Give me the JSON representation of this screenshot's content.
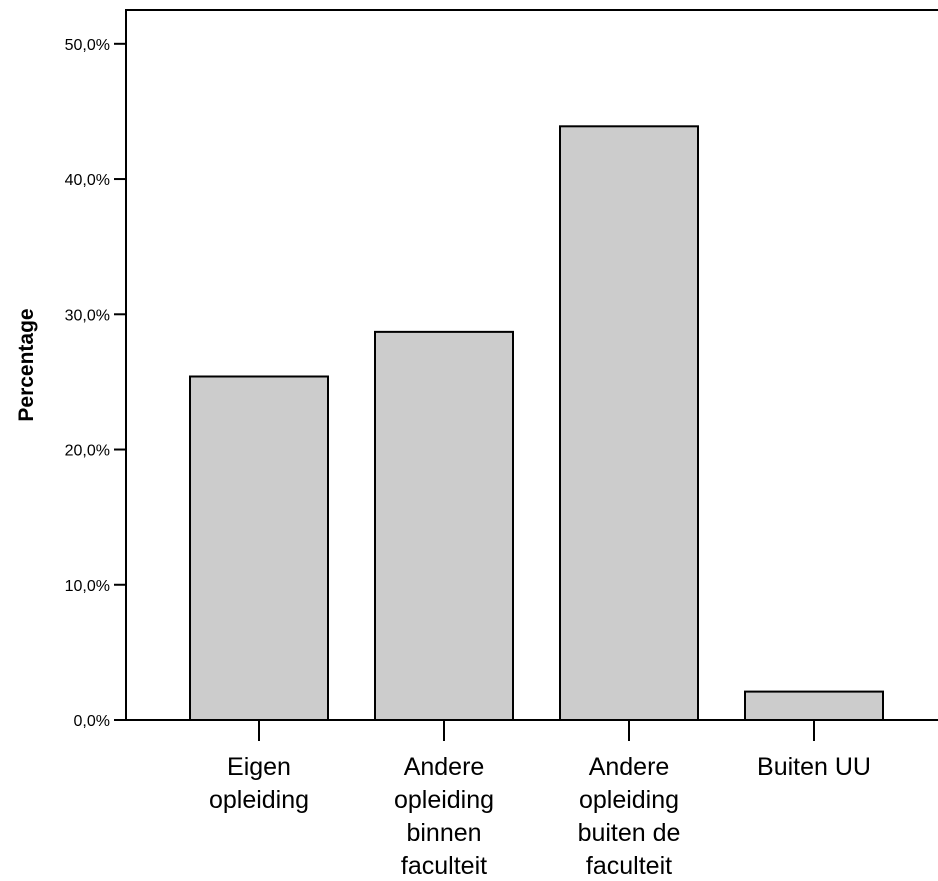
{
  "chart_data": {
    "type": "bar",
    "categories": [
      [
        "Eigen",
        "opleiding"
      ],
      [
        "Andere",
        "opleiding",
        "binnen",
        "faculteit"
      ],
      [
        "Andere",
        "opleiding",
        "buiten de",
        "faculteit"
      ],
      [
        "Buiten UU"
      ]
    ],
    "values": [
      25.4,
      28.7,
      43.9,
      2.1
    ],
    "ylabel": "Percentage",
    "ylim": [
      0,
      52.5
    ],
    "yticks": [
      0,
      10,
      20,
      30,
      40,
      50
    ],
    "ytick_labels": [
      "0,0%",
      "10,0%",
      "20,0%",
      "30,0%",
      "40,0%",
      "50,0%"
    ],
    "bar_color": "#cccccc",
    "grid": false,
    "legend": "none"
  }
}
